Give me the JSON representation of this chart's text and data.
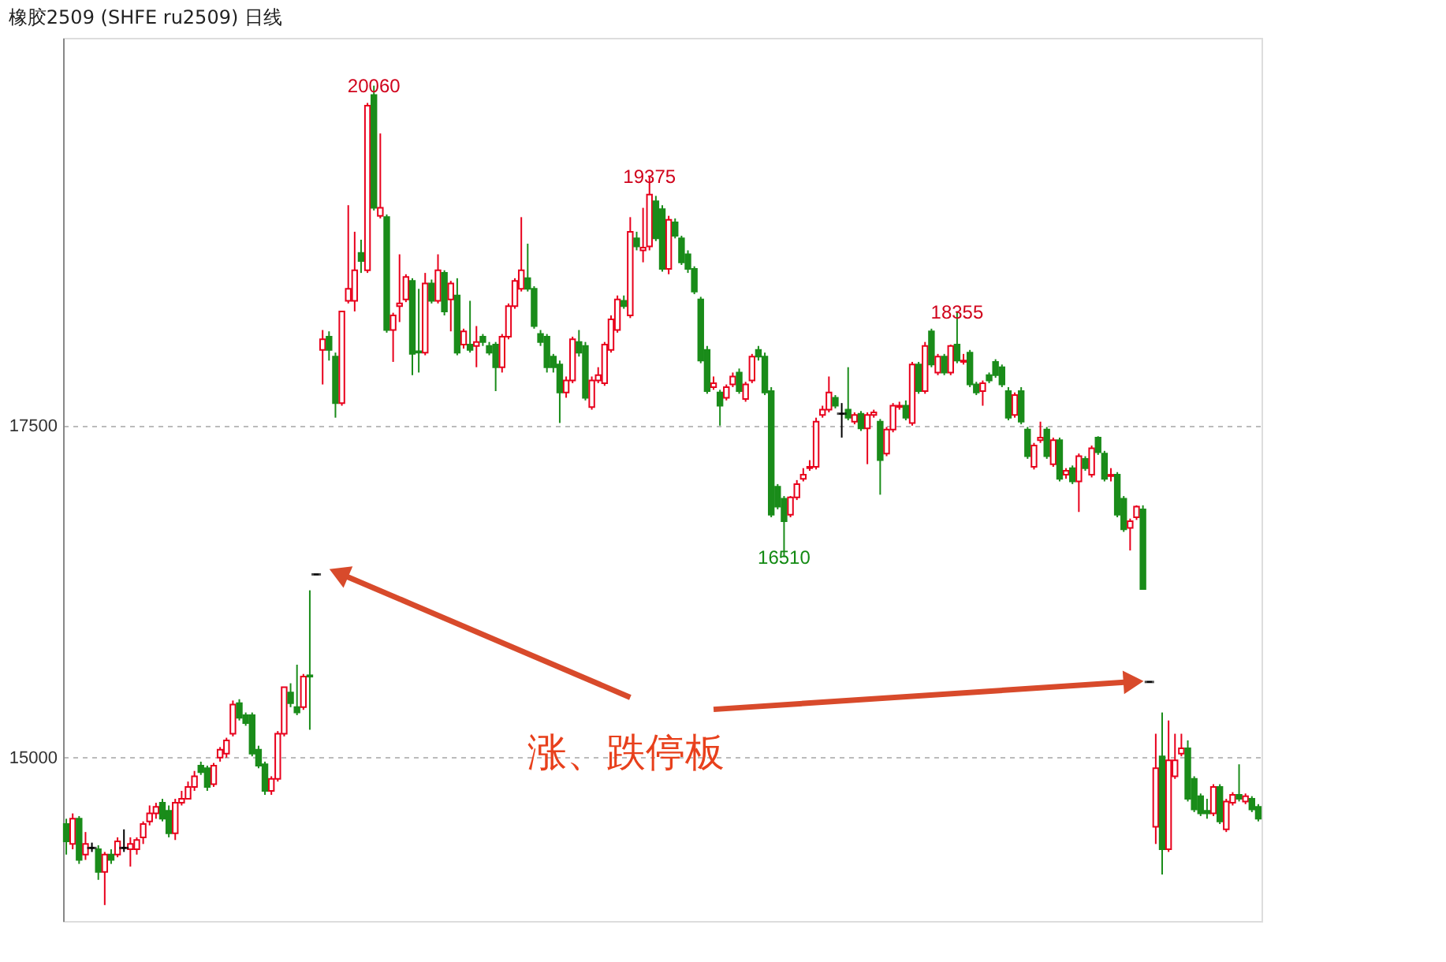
{
  "chart_data": {
    "type": "candlestick",
    "title": "橡胶2509 (SHFE ru2509) 日线",
    "categories": [
      null,
      null,
      null,
      null,
      null,
      null,
      null,
      null,
      null,
      null,
      null,
      null,
      null,
      null,
      null,
      null,
      null,
      null,
      null,
      null,
      null,
      null,
      null,
      null,
      null,
      null,
      null,
      null,
      null,
      null,
      null,
      null,
      null,
      null,
      null,
      null,
      null,
      null,
      null,
      null,
      null,
      null,
      null,
      null,
      null,
      null,
      null,
      null,
      null,
      null,
      null,
      null,
      null,
      null,
      null,
      null,
      null,
      null,
      null,
      null,
      null,
      null,
      null,
      null,
      null,
      null,
      null,
      null,
      null,
      null,
      null,
      null,
      null,
      null,
      null,
      null,
      null,
      null,
      null,
      null,
      null,
      null,
      null,
      null,
      null,
      null,
      null,
      null,
      null,
      null,
      null,
      null,
      null,
      null,
      null,
      null,
      null,
      null,
      null,
      null,
      null,
      null,
      null,
      null,
      null,
      null,
      null,
      null,
      null,
      null,
      null,
      null,
      null,
      null,
      null,
      null,
      null,
      null,
      null,
      null,
      null,
      null,
      null,
      null,
      null,
      null,
      null,
      null,
      null,
      null,
      null,
      null,
      null,
      null,
      null,
      null,
      null,
      null,
      null,
      null,
      null,
      null,
      null,
      null,
      null,
      null,
      null,
      null,
      null,
      null,
      null,
      null,
      null,
      null,
      null,
      null,
      null,
      null,
      null,
      null,
      null,
      null,
      null,
      null,
      null,
      null,
      null,
      null,
      null,
      null,
      null,
      null,
      null,
      null,
      null,
      null,
      null,
      null,
      null,
      null,
      null,
      null,
      null,
      null,
      null,
      null,
      null
    ],
    "ohlc": [
      [
        14500,
        14540,
        14270,
        14370
      ],
      [
        14350,
        14580,
        14310,
        14540
      ],
      [
        14540,
        14560,
        14200,
        14230
      ],
      [
        14270,
        14440,
        14230,
        14350
      ],
      [
        14320,
        14360,
        14290,
        14320
      ],
      [
        14310,
        14340,
        14080,
        14140
      ],
      [
        14140,
        14290,
        13890,
        14270
      ],
      [
        14270,
        14310,
        14200,
        14230
      ],
      [
        14270,
        14400,
        14250,
        14370
      ],
      [
        14320,
        14460,
        14290,
        14320
      ],
      [
        14310,
        14400,
        14180,
        14350
      ],
      [
        14310,
        14400,
        14270,
        14380
      ],
      [
        14400,
        14520,
        14350,
        14500
      ],
      [
        14520,
        14640,
        14490,
        14580
      ],
      [
        14580,
        14660,
        14540,
        14630
      ],
      [
        14660,
        14690,
        14520,
        14540
      ],
      [
        14600,
        14640,
        14400,
        14430
      ],
      [
        14430,
        14690,
        14380,
        14660
      ],
      [
        14660,
        14750,
        14640,
        14690
      ],
      [
        14690,
        14820,
        14690,
        14780
      ],
      [
        14780,
        14900,
        14750,
        14860
      ],
      [
        14940,
        14970,
        14870,
        14890
      ],
      [
        14920,
        14940,
        14750,
        14780
      ],
      [
        14800,
        14960,
        14780,
        14940
      ],
      [
        15000,
        15080,
        14970,
        15060
      ],
      [
        15030,
        15150,
        15000,
        15130
      ],
      [
        15180,
        15430,
        15160,
        15400
      ],
      [
        15410,
        15440,
        15280,
        15300
      ],
      [
        15320,
        15340,
        15240,
        15260
      ],
      [
        15320,
        15340,
        15010,
        15030
      ],
      [
        15060,
        15090,
        14920,
        14940
      ],
      [
        14950,
        14970,
        14720,
        14750
      ],
      [
        14750,
        14860,
        14720,
        14840
      ],
      [
        14840,
        15200,
        14820,
        15180
      ],
      [
        15180,
        15530,
        15160,
        15530
      ],
      [
        15490,
        15560,
        15380,
        15410
      ],
      [
        15380,
        15700,
        15320,
        15340
      ],
      [
        15380,
        15630,
        15360,
        15610
      ],
      [
        15620,
        16260,
        15210,
        15610
      ],
      [
        16380,
        16380,
        16380,
        16380
      ],
      [
        18070,
        18220,
        17810,
        18150
      ],
      [
        18170,
        18210,
        17990,
        18070
      ],
      [
        18020,
        18050,
        17560,
        17670
      ],
      [
        17670,
        18360,
        17650,
        18360
      ],
      [
        18440,
        19160,
        18420,
        18530
      ],
      [
        18440,
        18960,
        18360,
        18670
      ],
      [
        18800,
        18900,
        18650,
        18740
      ],
      [
        18670,
        19930,
        18650,
        19910
      ],
      [
        19990,
        20060,
        19120,
        19140
      ],
      [
        19080,
        19700,
        19060,
        19140
      ],
      [
        19070,
        19090,
        18200,
        18220
      ],
      [
        18220,
        18350,
        17980,
        18330
      ],
      [
        18400,
        18790,
        18280,
        18420
      ],
      [
        18450,
        18640,
        18430,
        18620
      ],
      [
        18590,
        18610,
        17880,
        18040
      ],
      [
        18060,
        18530,
        17900,
        18050
      ],
      [
        18050,
        18650,
        18030,
        18570
      ],
      [
        18570,
        18600,
        18420,
        18440
      ],
      [
        18440,
        18790,
        18420,
        18670
      ],
      [
        18650,
        18670,
        18330,
        18360
      ],
      [
        18450,
        18590,
        18210,
        18570
      ],
      [
        18480,
        18610,
        18030,
        18050
      ],
      [
        18110,
        18230,
        18080,
        18210
      ],
      [
        18110,
        18440,
        18050,
        18070
      ],
      [
        18100,
        18250,
        17940,
        18130
      ],
      [
        18170,
        18190,
        18100,
        18130
      ],
      [
        18100,
        18130,
        18030,
        18050
      ],
      [
        18110,
        18130,
        17760,
        17940
      ],
      [
        17940,
        18190,
        17900,
        18170
      ],
      [
        18170,
        18420,
        18150,
        18400
      ],
      [
        18400,
        18610,
        18380,
        18590
      ],
      [
        18530,
        19070,
        18510,
        18670
      ],
      [
        18610,
        18870,
        18510,
        18530
      ],
      [
        18530,
        18550,
        18230,
        18250
      ],
      [
        18190,
        18220,
        18100,
        18130
      ],
      [
        18170,
        18190,
        17900,
        17940
      ],
      [
        18020,
        18040,
        17900,
        17940
      ],
      [
        17960,
        17990,
        17520,
        17750
      ],
      [
        17750,
        17870,
        17710,
        17840
      ],
      [
        17840,
        18170,
        17820,
        18150
      ],
      [
        18130,
        18220,
        18020,
        18050
      ],
      [
        18100,
        18130,
        17690,
        17710
      ],
      [
        17640,
        17870,
        17620,
        17840
      ],
      [
        17840,
        17940,
        17820,
        17880
      ],
      [
        17820,
        18130,
        17800,
        18110
      ],
      [
        18070,
        18330,
        18050,
        18300
      ],
      [
        18220,
        18480,
        18200,
        18450
      ],
      [
        18440,
        18480,
        18380,
        18400
      ],
      [
        18330,
        19070,
        18310,
        18960
      ],
      [
        18910,
        18960,
        18820,
        18850
      ],
      [
        18820,
        19140,
        18730,
        18840
      ],
      [
        18850,
        19375,
        18820,
        19240
      ],
      [
        19190,
        19230,
        18890,
        18910
      ],
      [
        19130,
        19160,
        18660,
        18680
      ],
      [
        18680,
        19080,
        18640,
        19050
      ],
      [
        19030,
        19060,
        18910,
        18930
      ],
      [
        18910,
        18930,
        18710,
        18730
      ],
      [
        18790,
        18820,
        18650,
        18680
      ],
      [
        18680,
        18700,
        18490,
        18510
      ],
      [
        18450,
        18470,
        17970,
        17990
      ],
      [
        18070,
        18100,
        17740,
        17760
      ],
      [
        17790,
        17870,
        17770,
        17820
      ],
      [
        17750,
        17770,
        17500,
        17650
      ],
      [
        17710,
        17810,
        17690,
        17790
      ],
      [
        17810,
        17900,
        17790,
        17870
      ],
      [
        17900,
        17930,
        17740,
        17760
      ],
      [
        17700,
        17830,
        17680,
        17810
      ],
      [
        17840,
        18040,
        17820,
        18020
      ],
      [
        18070,
        18100,
        17990,
        18020
      ],
      [
        18020,
        18050,
        17730,
        17750
      ],
      [
        17760,
        17790,
        16810,
        16830
      ],
      [
        17040,
        17060,
        16870,
        16890
      ],
      [
        16950,
        16970,
        16510,
        16780
      ],
      [
        16830,
        16970,
        16810,
        16960
      ],
      [
        16960,
        17090,
        16940,
        17060
      ],
      [
        17100,
        17180,
        17080,
        17130
      ],
      [
        17180,
        17240,
        17160,
        17190
      ],
      [
        17190,
        17560,
        17170,
        17530
      ],
      [
        17580,
        17650,
        17560,
        17620
      ],
      [
        17620,
        17870,
        17600,
        17750
      ],
      [
        17710,
        17730,
        17630,
        17650
      ],
      [
        17590,
        17670,
        17410,
        17590
      ],
      [
        17620,
        17940,
        17540,
        17560
      ],
      [
        17530,
        17600,
        17510,
        17580
      ],
      [
        17590,
        17610,
        17460,
        17480
      ],
      [
        17480,
        17600,
        17210,
        17580
      ],
      [
        17580,
        17620,
        17560,
        17600
      ],
      [
        17530,
        17550,
        16980,
        17240
      ],
      [
        17290,
        17490,
        17270,
        17470
      ],
      [
        17470,
        17670,
        17450,
        17650
      ],
      [
        17640,
        17680,
        17620,
        17650
      ],
      [
        17650,
        17690,
        17540,
        17560
      ],
      [
        17520,
        17980,
        17500,
        17960
      ],
      [
        17960,
        17980,
        17740,
        17760
      ],
      [
        17760,
        18130,
        17740,
        18100
      ],
      [
        18210,
        18230,
        17940,
        17960
      ],
      [
        17900,
        18040,
        17880,
        18020
      ],
      [
        18020,
        18040,
        17880,
        17900
      ],
      [
        17900,
        18110,
        17880,
        18100
      ],
      [
        18110,
        18355,
        17970,
        17990
      ],
      [
        17980,
        18040,
        17960,
        17990
      ],
      [
        18050,
        18070,
        17790,
        17810
      ],
      [
        17810,
        17830,
        17730,
        17750
      ],
      [
        17760,
        17840,
        17650,
        17820
      ],
      [
        17880,
        17900,
        17820,
        17840
      ],
      [
        17980,
        18000,
        17860,
        17880
      ],
      [
        17940,
        17960,
        17790,
        17810
      ],
      [
        17760,
        17790,
        17540,
        17560
      ],
      [
        17580,
        17750,
        17560,
        17730
      ],
      [
        17760,
        17790,
        17510,
        17530
      ],
      [
        17470,
        17490,
        17250,
        17270
      ],
      [
        17190,
        17370,
        17170,
        17350
      ],
      [
        17390,
        17530,
        17370,
        17410
      ],
      [
        17470,
        17490,
        17250,
        17270
      ],
      [
        17210,
        17410,
        17190,
        17390
      ],
      [
        17390,
        17410,
        17080,
        17100
      ],
      [
        17130,
        17180,
        17100,
        17160
      ],
      [
        17180,
        17200,
        17060,
        17080
      ],
      [
        17080,
        17290,
        16850,
        17270
      ],
      [
        17250,
        17270,
        17160,
        17180
      ],
      [
        17130,
        17350,
        17110,
        17330
      ],
      [
        17410,
        17420,
        17280,
        17300
      ],
      [
        17290,
        17310,
        17080,
        17100
      ],
      [
        17120,
        17180,
        17080,
        17130
      ],
      [
        17130,
        17150,
        16810,
        16830
      ],
      [
        16950,
        16970,
        16700,
        16720
      ],
      [
        16730,
        16800,
        16560,
        16780
      ],
      [
        16810,
        16900,
        16790,
        16890
      ],
      [
        16870,
        16900,
        16270,
        16270
      ],
      [
        15570,
        15570,
        15570,
        15570
      ],
      [
        14480,
        15180,
        14350,
        14920
      ],
      [
        15010,
        15340,
        14120,
        14310
      ],
      [
        14310,
        15280,
        14290,
        14980
      ],
      [
        14860,
        15180,
        14840,
        14980
      ],
      [
        15030,
        15180,
        15010,
        15070
      ],
      [
        15070,
        15130,
        14670,
        14690
      ],
      [
        14840,
        14860,
        14590,
        14610
      ],
      [
        14710,
        14730,
        14560,
        14580
      ],
      [
        14600,
        14690,
        14540,
        14580
      ],
      [
        14580,
        14800,
        14560,
        14780
      ],
      [
        14780,
        14800,
        14500,
        14520
      ],
      [
        14460,
        14690,
        14440,
        14670
      ],
      [
        14660,
        14740,
        14640,
        14720
      ],
      [
        14720,
        14950,
        14670,
        14690
      ],
      [
        14670,
        14730,
        14650,
        14710
      ],
      [
        14690,
        14710,
        14590,
        14610
      ],
      [
        14630,
        14650,
        14520,
        14540
      ]
    ],
    "colors": [
      "#1a8c1a",
      "#e8001c",
      "#1a8c1a",
      "#e8001c",
      "#000000",
      "#1a8c1a",
      "#e8001c",
      "#1a8c1a",
      "#e8001c",
      "#000000",
      "#e8001c",
      "#e8001c",
      "#e8001c",
      "#e8001c",
      "#e8001c",
      "#1a8c1a",
      "#1a8c1a",
      "#e8001c",
      "#e8001c",
      "#e8001c",
      "#e8001c",
      "#1a8c1a",
      "#1a8c1a",
      "#e8001c",
      "#e8001c",
      "#e8001c",
      "#e8001c",
      "#1a8c1a",
      "#1a8c1a",
      "#1a8c1a",
      "#1a8c1a",
      "#1a8c1a",
      "#e8001c",
      "#e8001c",
      "#e8001c",
      "#1a8c1a",
      "#1a8c1a",
      "#e8001c",
      "#1a8c1a",
      "#000000",
      "#e8001c",
      "#1a8c1a",
      "#1a8c1a",
      "#e8001c",
      "#e8001c",
      "#e8001c",
      "#1a8c1a",
      "#e8001c",
      "#1a8c1a",
      "#e8001c",
      "#1a8c1a",
      "#e8001c",
      "#e8001c",
      "#e8001c",
      "#1a8c1a",
      "#1a8c1a",
      "#e8001c",
      "#1a8c1a",
      "#e8001c",
      "#1a8c1a",
      "#e8001c",
      "#1a8c1a",
      "#e8001c",
      "#1a8c1a",
      "#e8001c",
      "#1a8c1a",
      "#1a8c1a",
      "#1a8c1a",
      "#e8001c",
      "#e8001c",
      "#e8001c",
      "#e8001c",
      "#1a8c1a",
      "#1a8c1a",
      "#1a8c1a",
      "#1a8c1a",
      "#1a8c1a",
      "#1a8c1a",
      "#e8001c",
      "#e8001c",
      "#1a8c1a",
      "#1a8c1a",
      "#e8001c",
      "#e8001c",
      "#e8001c",
      "#e8001c",
      "#e8001c",
      "#1a8c1a",
      "#e8001c",
      "#1a8c1a",
      "#e8001c",
      "#e8001c",
      "#1a8c1a",
      "#1a8c1a",
      "#e8001c",
      "#1a8c1a",
      "#1a8c1a",
      "#1a8c1a",
      "#1a8c1a",
      "#1a8c1a",
      "#1a8c1a",
      "#e8001c",
      "#1a8c1a",
      "#e8001c",
      "#e8001c",
      "#1a8c1a",
      "#e8001c",
      "#e8001c",
      "#1a8c1a",
      "#1a8c1a",
      "#1a8c1a",
      "#1a8c1a",
      "#1a8c1a",
      "#e8001c",
      "#e8001c",
      "#e8001c",
      "#e8001c",
      "#e8001c",
      "#e8001c",
      "#e8001c",
      "#1a8c1a",
      "#000000",
      "#1a8c1a",
      "#e8001c",
      "#1a8c1a",
      "#e8001c",
      "#e8001c",
      "#1a8c1a",
      "#e8001c",
      "#e8001c",
      "#e8001c",
      "#1a8c1a",
      "#e8001c",
      "#1a8c1a",
      "#e8001c",
      "#1a8c1a",
      "#e8001c",
      "#1a8c1a",
      "#e8001c",
      "#1a8c1a",
      "#e8001c",
      "#1a8c1a",
      "#1a8c1a",
      "#e8001c",
      "#1a8c1a",
      "#1a8c1a",
      "#1a8c1a",
      "#1a8c1a",
      "#e8001c",
      "#1a8c1a",
      "#1a8c1a",
      "#e8001c",
      "#e8001c",
      "#1a8c1a",
      "#e8001c",
      "#1a8c1a",
      "#e8001c",
      "#1a8c1a",
      "#e8001c",
      "#1a8c1a",
      "#e8001c",
      "#1a8c1a",
      "#1a8c1a",
      "#e8001c",
      "#1a8c1a",
      "#1a8c1a",
      "#e8001c",
      "#e8001c",
      "#1a8c1a",
      "#000000",
      "#e8001c",
      "#1a8c1a",
      "#e8001c",
      "#e8001c",
      "#e8001c",
      "#1a8c1a",
      "#1a8c1a",
      "#1a8c1a",
      "#1a8c1a",
      "#e8001c",
      "#1a8c1a",
      "#e8001c",
      "#e8001c",
      "#1a8c1a",
      "#e8001c",
      "#1a8c1a",
      "#1a8c1a"
    ],
    "ylim": [
      13770,
      20420
    ],
    "yticks": [
      15000,
      17500
    ],
    "grid": "y",
    "annotations": [
      {
        "text": "20060",
        "y": 20060
      },
      {
        "text": "19375",
        "y": 19375
      },
      {
        "text": "18355",
        "y": 18355
      },
      {
        "text": "16510",
        "y": 16510
      },
      "涨、跌停板"
    ]
  }
}
